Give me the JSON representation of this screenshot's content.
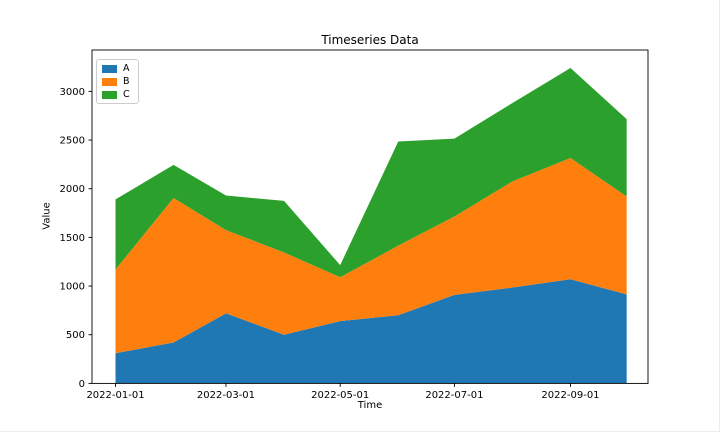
{
  "figure": {
    "background": "#ffffff"
  },
  "chart_data": {
    "type": "area",
    "stacked": true,
    "title": "Timeseries Data",
    "xlabel": "Time",
    "ylabel": "Value",
    "x": [
      "2022-01-01",
      "2022-02-01",
      "2022-03-01",
      "2022-04-01",
      "2022-05-01",
      "2022-06-01",
      "2022-07-01",
      "2022-08-01",
      "2022-09-01",
      "2022-10-01"
    ],
    "series": [
      {
        "name": "A",
        "color": "#1f77b4",
        "values": [
          310,
          420,
          720,
          500,
          640,
          700,
          910,
          985,
          1070,
          915
        ]
      },
      {
        "name": "B",
        "color": "#ff7f0e",
        "values": [
          860,
          1485,
          855,
          845,
          450,
          715,
          805,
          1090,
          1245,
          1005
        ]
      },
      {
        "name": "C",
        "color": "#2ca02c",
        "values": [
          720,
          340,
          355,
          530,
          125,
          1070,
          800,
          805,
          925,
          795
        ]
      }
    ],
    "stack_totals": [
      1890,
      2245,
      1930,
      1875,
      1215,
      2485,
      2515,
      2880,
      3240,
      2715
    ],
    "xticks": [
      "2022-01-01",
      "2022-03-01",
      "2022-05-01",
      "2022-07-01",
      "2022-09-01"
    ],
    "yticks": [
      0,
      500,
      1000,
      1500,
      2000,
      2500,
      3000
    ],
    "ylim": [
      0,
      3425
    ],
    "grid": false,
    "legend_position": "upper left",
    "axis_color": "#000000",
    "tick_label_color": "#000000"
  }
}
